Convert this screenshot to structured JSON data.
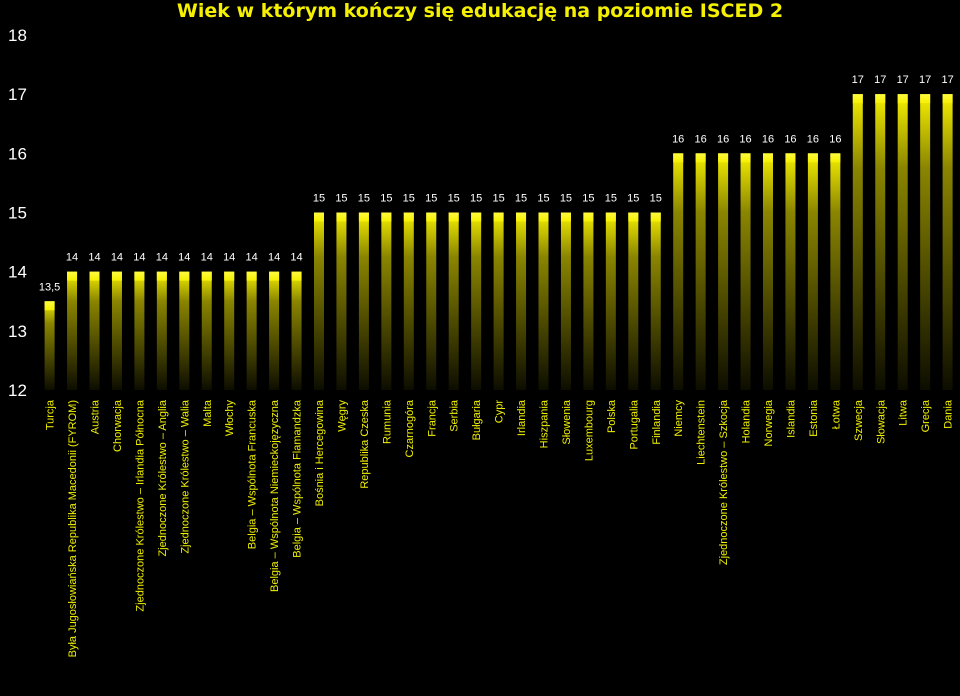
{
  "chart_data": {
    "type": "bar",
    "title": "Wiek w którym kończy się edukację na poziomie ISCED 2",
    "xlabel": "",
    "ylabel": "",
    "ylim": [
      12,
      18
    ],
    "yticks": [
      "12",
      "13",
      "14",
      "15",
      "16",
      "17",
      "18"
    ],
    "grid": false,
    "legend": "none",
    "colors": {
      "background": "#000000",
      "bar": "#f5f000",
      "tick_text": "#ffffff",
      "category_text": "#f0f000",
      "title": "#f5f000"
    },
    "categories": [
      "Turcja",
      "Była Jugosłowiańska Republika Macedonii (FYROM)",
      "Austria",
      "Chorwacja",
      "Zjednoczone Królestwo – Irlandia Północna",
      "Zjednoczone Królestwo – Anglia",
      "Zjednoczone Królestwo – Walia",
      "Malta",
      "Włochy",
      "Belgia – Wspólnota Francuska",
      "Belgia – Wspólnota Niemieckojęzyczna",
      "Belgia – Wspólnota Flamandzka",
      "Bośnia i Hercegowina",
      "Węgry",
      "Republika Czeska",
      "Rumunia",
      "Czarnogóra",
      "Francja",
      "Serbia",
      "Bułgaria",
      "Cypr",
      "Irlandia",
      "Hiszpania",
      "Słowenia",
      "Luxembourg",
      "Polska",
      "Portugalia",
      "Finlandia",
      "Niemcy",
      "Liechtenstein",
      "Zjednoczone Królestwo – Szkocja",
      "Holandia",
      "Norwegia",
      "Islandia",
      "Estonia",
      "Łotwa",
      "Szwecja",
      "Słowacja",
      "Litwa",
      "Grecja",
      "Dania"
    ],
    "values": [
      13.5,
      14,
      14,
      14,
      14,
      14,
      14,
      14,
      14,
      14,
      14,
      14,
      15,
      15,
      15,
      15,
      15,
      15,
      15,
      15,
      15,
      15,
      15,
      15,
      15,
      15,
      15,
      15,
      16,
      16,
      16,
      16,
      16,
      16,
      16,
      16,
      17,
      17,
      17,
      17,
      17
    ],
    "data_labels": [
      "13,5",
      "14",
      "14",
      "14",
      "14",
      "14",
      "14",
      "14",
      "14",
      "14",
      "14",
      "14",
      "15",
      "15",
      "15",
      "15",
      "15",
      "15",
      "15",
      "15",
      "15",
      "15",
      "15",
      "15",
      "15",
      "15",
      "15",
      "15",
      "16",
      "16",
      "16",
      "16",
      "16",
      "16",
      "16",
      "16",
      "17",
      "17",
      "17",
      "17",
      "17"
    ]
  }
}
